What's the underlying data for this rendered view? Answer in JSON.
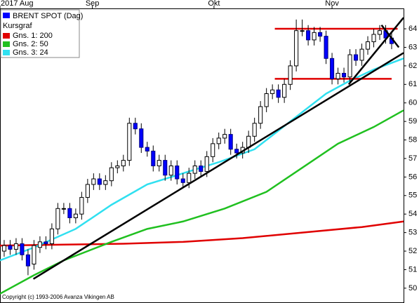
{
  "chart_data": {
    "type": "candlestick",
    "title": "BRENT SPOT (Dag)",
    "subtitle": "Kursgraf",
    "color": "#0000ff",
    "annotation": "Copyright (c) 1993-2006 Avanza Vikingen AB",
    "x": [
      0,
      1,
      2,
      3,
      4,
      5,
      6,
      7,
      8,
      9,
      10,
      11,
      12,
      13,
      14,
      15,
      16,
      17,
      18,
      19,
      20,
      21,
      22,
      23,
      24,
      25,
      26,
      27,
      28,
      29,
      30,
      31,
      32,
      33,
      34,
      35,
      36,
      37,
      38,
      39,
      40,
      41,
      42,
      43,
      44,
      45,
      46,
      47,
      48,
      49,
      50,
      51,
      52,
      53,
      54,
      55,
      56,
      57,
      58,
      59,
      60,
      61,
      62,
      63,
      64,
      65
    ],
    "open": [
      52.0,
      52.3,
      52.1,
      52.4,
      51.8,
      51.3,
      52.2,
      52.5,
      52.4,
      53.2,
      54.3,
      54.3,
      53.8,
      54.0,
      54.9,
      55.6,
      55.9,
      55.6,
      55.8,
      56.5,
      56.6,
      56.9,
      58.9,
      58.6,
      57.6,
      57.4,
      56.6,
      56.9,
      56.1,
      56.6,
      55.9,
      55.7,
      56.2,
      56.6,
      56.3,
      57.1,
      57.8,
      58.1,
      58.3,
      57.5,
      57.3,
      57.6,
      58.2,
      58.9,
      59.8,
      60.5,
      60.7,
      60.3,
      61.0,
      62.0,
      63.9,
      63.9,
      63.4,
      63.8,
      63.6,
      62.4,
      61.3,
      61.6,
      61.4,
      62.6,
      62.3,
      62.9,
      63.3,
      63.7,
      63.9,
      63.5
    ],
    "high": [
      52.6,
      52.6,
      52.7,
      52.7,
      52.1,
      52.6,
      52.8,
      52.8,
      53.5,
      54.6,
      54.6,
      54.6,
      54.3,
      55.2,
      55.9,
      56.2,
      56.2,
      56.1,
      56.8,
      56.9,
      57.2,
      59.2,
      59.2,
      58.9,
      57.9,
      57.7,
      57.2,
      57.2,
      56.9,
      56.9,
      56.2,
      56.5,
      56.9,
      56.9,
      57.4,
      58.1,
      58.4,
      58.6,
      58.6,
      57.8,
      57.9,
      58.5,
      59.2,
      60.1,
      60.8,
      61.0,
      61.0,
      61.3,
      62.3,
      64.5,
      64.5,
      64.2,
      64.1,
      64.1,
      63.9,
      62.7,
      61.9,
      61.9,
      62.9,
      62.9,
      63.2,
      63.6,
      64.0,
      64.2,
      64.2,
      63.8
    ],
    "low": [
      51.7,
      51.8,
      51.8,
      51.5,
      50.7,
      51.0,
      51.9,
      52.1,
      52.1,
      52.9,
      54.0,
      53.5,
      53.5,
      53.7,
      54.6,
      55.3,
      55.3,
      55.3,
      55.5,
      56.2,
      56.3,
      56.6,
      58.3,
      57.3,
      57.1,
      56.3,
      56.3,
      55.8,
      55.8,
      55.6,
      55.4,
      55.4,
      55.9,
      56.0,
      56.0,
      56.8,
      57.5,
      57.8,
      57.2,
      57.0,
      57.0,
      57.3,
      57.9,
      58.6,
      59.5,
      60.2,
      60.0,
      60.0,
      60.7,
      61.7,
      63.6,
      63.1,
      63.1,
      63.3,
      62.1,
      61.0,
      61.0,
      61.1,
      61.1,
      62.0,
      62.0,
      62.6,
      63.0,
      63.4,
      63.2,
      62.9
    ],
    "close": [
      52.3,
      52.1,
      52.4,
      51.8,
      51.2,
      52.3,
      52.5,
      52.4,
      53.2,
      54.3,
      54.3,
      53.8,
      54.0,
      54.9,
      55.6,
      55.9,
      55.6,
      55.8,
      56.5,
      56.6,
      56.9,
      58.9,
      58.6,
      57.6,
      57.4,
      56.6,
      56.9,
      56.1,
      56.6,
      55.9,
      55.7,
      56.2,
      56.6,
      56.3,
      57.1,
      57.8,
      58.1,
      58.3,
      57.5,
      57.3,
      57.6,
      58.2,
      58.9,
      59.8,
      60.5,
      60.7,
      60.3,
      61.0,
      62.0,
      63.9,
      63.9,
      63.4,
      63.8,
      63.6,
      62.4,
      61.3,
      61.6,
      61.4,
      62.6,
      62.3,
      62.9,
      63.3,
      63.7,
      63.9,
      63.5,
      63.2
    ],
    "series": [
      {
        "name": "Gns. 1: 200",
        "color": "#e00000",
        "x": [
          -0.7,
          10,
          20,
          30,
          40,
          50,
          60,
          67
        ],
        "values": [
          52.3,
          52.35,
          52.4,
          52.5,
          52.7,
          53.0,
          53.3,
          53.6
        ]
      },
      {
        "name": "Gns. 2: 50",
        "color": "#20c020",
        "x": [
          -0.7,
          5,
          10,
          18,
          24,
          30,
          37,
          44,
          50,
          56,
          62,
          67
        ],
        "values": [
          49.7,
          50.7,
          51.5,
          52.5,
          53.2,
          53.6,
          54.3,
          55.2,
          56.5,
          57.8,
          58.7,
          59.6
        ]
      },
      {
        "name": "Gns. 3: 24",
        "color": "#30e0f0",
        "x": [
          -0.7,
          5,
          12,
          18,
          24,
          30,
          36,
          42,
          48,
          54,
          58,
          62,
          67
        ],
        "values": [
          51.5,
          52.2,
          53.2,
          54.5,
          55.6,
          56.2,
          56.8,
          57.5,
          59.0,
          60.5,
          61.2,
          61.8,
          62.4
        ]
      }
    ],
    "trendlines": [
      {
        "color": "#000000",
        "points": [
          [
            4.9,
            50.5
          ],
          [
            67,
            62.7
          ]
        ]
      },
      {
        "color": "#000000",
        "points": [
          [
            57.8,
            61.0
          ],
          [
            67,
            64.6
          ]
        ]
      },
      {
        "color": "#000000",
        "points": [
          [
            63.3,
            64.2
          ],
          [
            66.2,
            63.0
          ]
        ]
      }
    ],
    "levels": [
      {
        "color": "#e00000",
        "value": 64,
        "from": 45.4,
        "to": 66
      },
      {
        "color": "#e00000",
        "value": 61.3,
        "from": 45.4,
        "to": 65
      }
    ],
    "xlim": [
      -0.7,
      67
    ],
    "xticks": [
      {
        "value": -0.7,
        "label": "2017 Aug"
      },
      {
        "value": 14.8,
        "label": "Sep"
      },
      {
        "value": 35.2,
        "label": "Okt"
      },
      {
        "value": 55,
        "label": "Nov"
      }
    ],
    "ylim": [
      49.2,
      65.1
    ],
    "yticks": [
      50,
      51,
      52,
      53,
      54,
      55,
      56,
      57,
      58,
      59,
      60,
      61,
      62,
      63,
      64
    ]
  }
}
